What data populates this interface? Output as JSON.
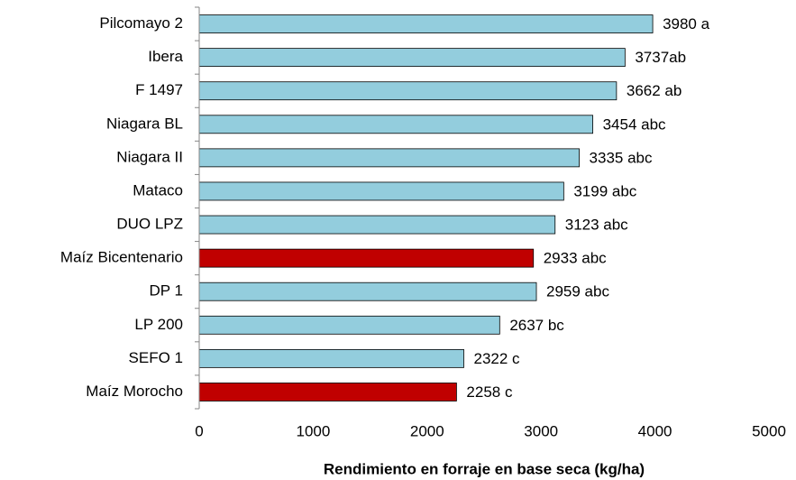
{
  "chart_data": {
    "type": "hbar",
    "categories": [
      "Pilcomayo 2",
      "Ibera",
      "F 1497",
      "Niagara BL",
      "Niagara II",
      "Mataco",
      "DUO LPZ",
      "Maíz Bicentenario",
      "DP 1",
      "LP 200",
      "SEFO 1",
      "Maíz Morocho"
    ],
    "values": [
      3980,
      3737,
      3662,
      3454,
      3335,
      3199,
      3123,
      2933,
      2959,
      2637,
      2322,
      2258
    ],
    "value_labels": [
      "3980 a",
      "3737ab",
      "3662 ab",
      "3454 abc",
      "3335 abc",
      "3199 abc",
      "3123 abc",
      "2933 abc",
      "2959 abc",
      "2637 bc",
      "2322 c",
      "2258 c"
    ],
    "colors": [
      "#93cddd",
      "#93cddd",
      "#93cddd",
      "#93cddd",
      "#93cddd",
      "#93cddd",
      "#93cddd",
      "#c00000",
      "#93cddd",
      "#93cddd",
      "#93cddd",
      "#c00000"
    ],
    "xlabel": "Rendimiento en forraje en base seca (kg/ha)",
    "xlim": [
      0,
      5000
    ],
    "xticks": [
      0,
      1000,
      2000,
      3000,
      4000,
      5000
    ]
  }
}
